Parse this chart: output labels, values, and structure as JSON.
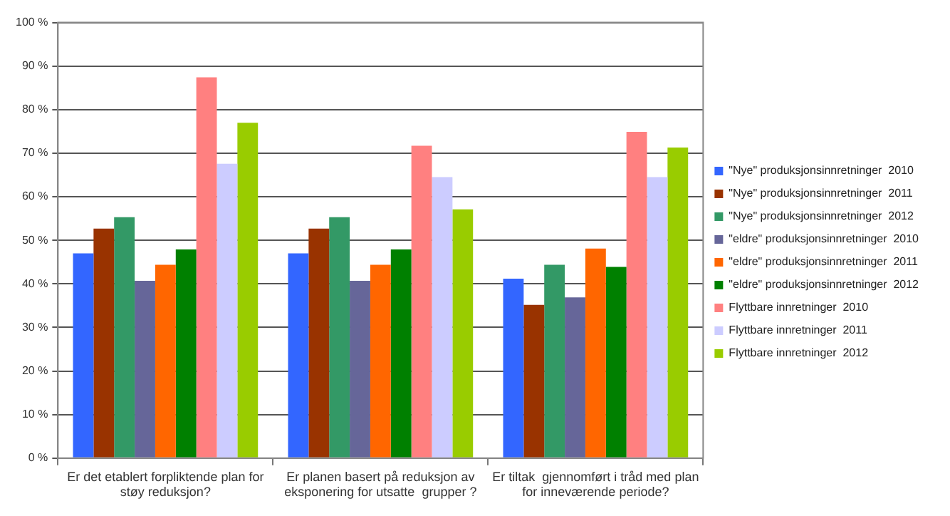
{
  "chart_data": {
    "type": "bar",
    "categories": [
      "Er det etablert forpliktende plan for støy reduksjon?",
      "Er planen basert på reduksjon av eksponering for utsatte  grupper ?",
      "Er tiltak  gjennomført i tråd med plan for inneværende periode?"
    ],
    "series": [
      {
        "name": "\"Nye\" produksjonsinnretninger  2010",
        "color": "#3366ff",
        "values": [
          47.0,
          47.0,
          41.2
        ]
      },
      {
        "name": "\"Nye\" produksjonsinnretninger  2011",
        "color": "#993300",
        "values": [
          52.7,
          52.7,
          35.2
        ]
      },
      {
        "name": "\"Nye\" produksjonsinnretninger  2012",
        "color": "#339966",
        "values": [
          55.3,
          55.3,
          44.4
        ]
      },
      {
        "name": "\"eldre\" produksjonsinnretninger  2010",
        "color": "#666699",
        "values": [
          40.7,
          40.7,
          36.9
        ]
      },
      {
        "name": "\"eldre\" produksjonsinnretninger  2011",
        "color": "#ff6600",
        "values": [
          44.4,
          44.4,
          48.1
        ]
      },
      {
        "name": "\"eldre\" produksjonsinnretninger  2012",
        "color": "#008000",
        "values": [
          47.9,
          47.9,
          43.9
        ]
      },
      {
        "name": "Flyttbare innretninger  2010",
        "color": "#ff8080",
        "values": [
          87.4,
          71.7,
          74.9
        ]
      },
      {
        "name": "Flyttbare innretninger  2011",
        "color": "#ccccff",
        "values": [
          67.6,
          64.5,
          64.5
        ]
      },
      {
        "name": "Flyttbare innretninger  2012",
        "color": "#99cc00",
        "values": [
          77.0,
          57.1,
          71.3
        ]
      }
    ],
    "ylim": [
      0,
      100
    ],
    "yticks": [
      {
        "value": 0,
        "label": "0 %"
      },
      {
        "value": 10,
        "label": "10 %"
      },
      {
        "value": 20,
        "label": "20 %"
      },
      {
        "value": 30,
        "label": "30 %"
      },
      {
        "value": 40,
        "label": "40 %"
      },
      {
        "value": 50,
        "label": "50 %"
      },
      {
        "value": 60,
        "label": "60 %"
      },
      {
        "value": 70,
        "label": "70 %"
      },
      {
        "value": 80,
        "label": "80 %"
      },
      {
        "value": 90,
        "label": "90 %"
      },
      {
        "value": 100,
        "label": "100 %"
      }
    ],
    "grid": "y",
    "legend": "right"
  }
}
